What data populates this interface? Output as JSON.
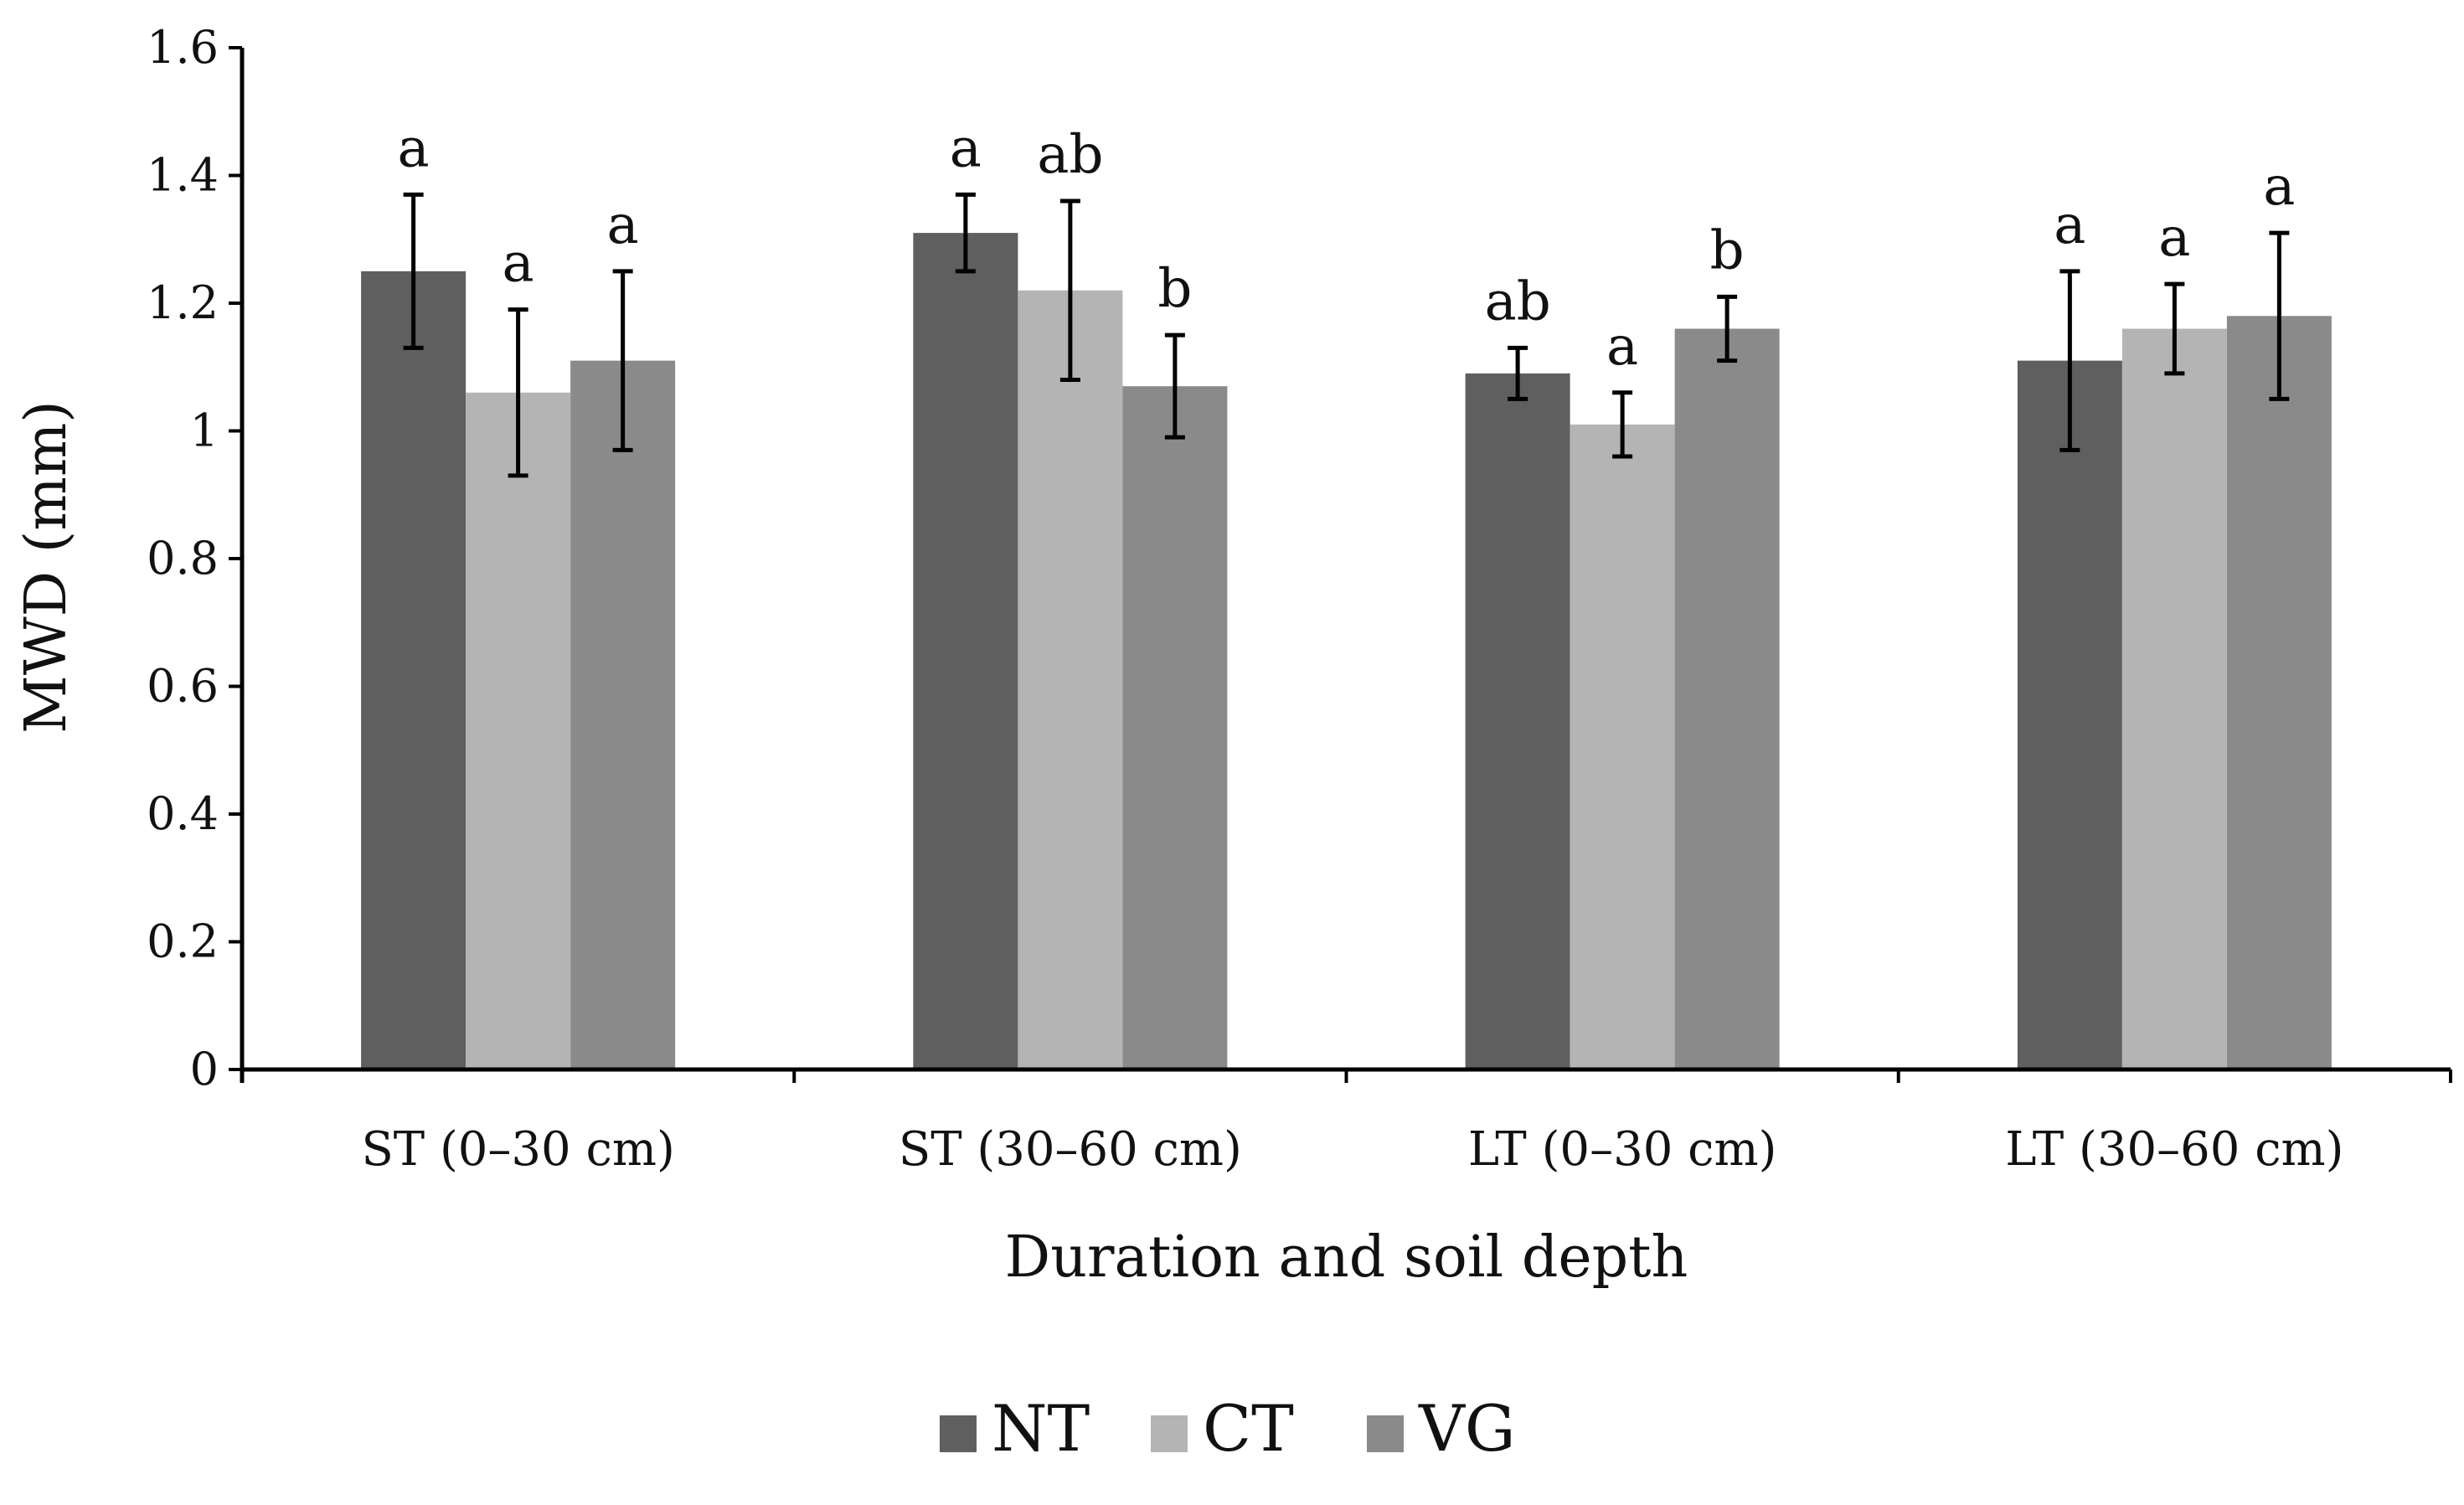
{
  "chart_data": {
    "type": "bar",
    "title": "",
    "xlabel": "Duration and soil depth",
    "ylabel": "MWD (mm)",
    "ylim": [
      0,
      1.6
    ],
    "yticks": [
      0,
      0.2,
      0.4,
      0.6,
      0.8,
      1,
      1.2,
      1.4,
      1.6
    ],
    "ytick_labels": [
      "0",
      "0.2",
      "0.4",
      "0.6",
      "0.8",
      "1",
      "1.2",
      "1.4",
      "1.6"
    ],
    "categories": [
      "ST (0–30 cm)",
      "ST (30–60 cm)",
      "LT (0–30 cm)",
      "LT (30–60 cm)"
    ],
    "series": [
      {
        "name": "NT",
        "color": "#5f5f5f",
        "values": [
          1.25,
          1.31,
          1.09,
          1.11
        ],
        "errors": [
          0.12,
          0.06,
          0.04,
          0.14
        ],
        "letters": [
          "a",
          "a",
          "ab",
          "a"
        ]
      },
      {
        "name": "CT",
        "color": "#b4b4b4",
        "values": [
          1.06,
          1.22,
          1.01,
          1.16
        ],
        "errors": [
          0.13,
          0.14,
          0.05,
          0.07
        ],
        "letters": [
          "a",
          "ab",
          "a",
          "a"
        ]
      },
      {
        "name": "VG",
        "color": "#8a8a8a",
        "values": [
          1.11,
          1.07,
          1.16,
          1.18
        ],
        "errors": [
          0.14,
          0.08,
          0.05,
          0.13
        ],
        "letters": [
          "a",
          "b",
          "b",
          "a"
        ]
      }
    ],
    "grid": false,
    "legend_position": "bottom-center"
  }
}
